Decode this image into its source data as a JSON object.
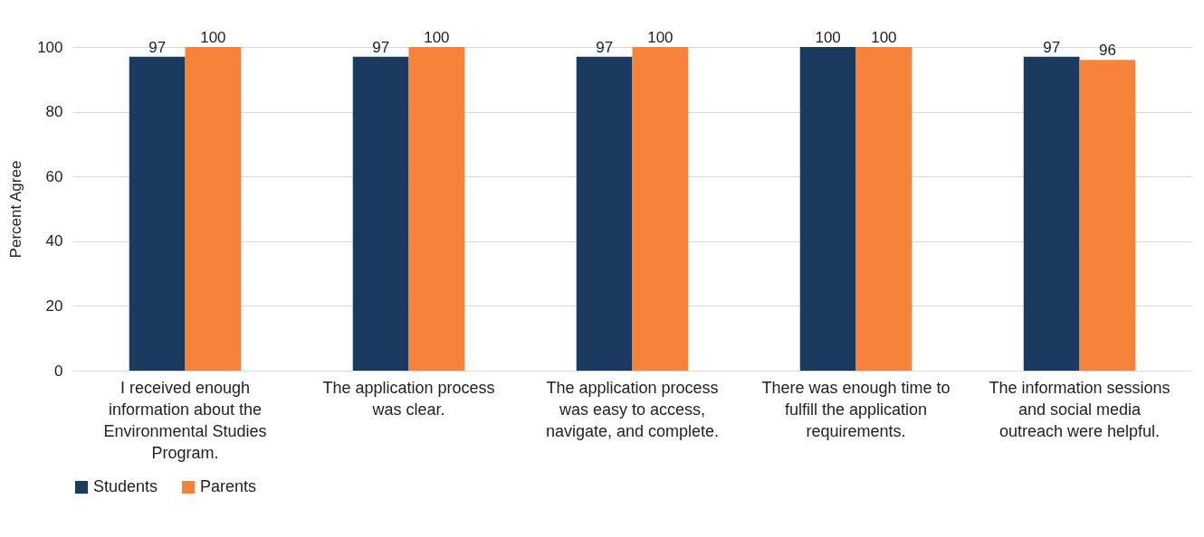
{
  "chart_data": {
    "type": "bar",
    "ylabel": "Percent Agree",
    "categories": [
      "I received enough information about the Environmental Studies Program.",
      "The application process was clear.",
      "The application process was easy to access, navigate, and complete.",
      "There was enough time to fulfill the application requirements.",
      "The information sessions and social media outreach were helpful."
    ],
    "series": [
      {
        "name": "Students",
        "color": "#1b3a5f",
        "values": [
          97,
          97,
          97,
          100,
          97
        ]
      },
      {
        "name": "Parents",
        "color": "#f7823a",
        "values": [
          100,
          100,
          100,
          100,
          96
        ]
      }
    ],
    "ylim": [
      0,
      100
    ],
    "yticks": [
      0,
      20,
      40,
      60,
      80,
      100
    ],
    "grid": "y",
    "legend": "bottom",
    "data_labels": true
  }
}
